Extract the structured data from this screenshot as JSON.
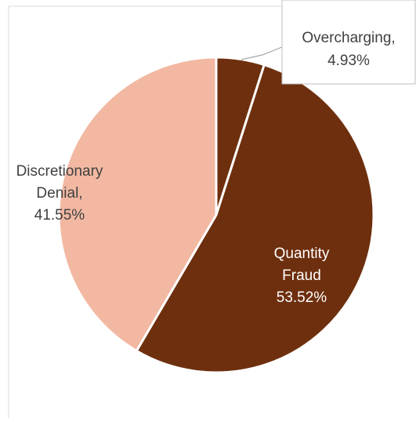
{
  "chart_data": {
    "type": "pie",
    "title": "",
    "slices": [
      {
        "label_lines": [
          "Overcharging,",
          "4.93%"
        ],
        "category": "Overcharging",
        "value": 4.93,
        "color": "#6e2f0e"
      },
      {
        "label_lines": [
          "Quantity",
          "Fraud",
          "53.52%"
        ],
        "category": "Quantity Fraud",
        "value": 53.52,
        "color": "#6e2f0e"
      },
      {
        "label_lines": [
          "Discretionary",
          "Denial,",
          "41.55%"
        ],
        "category": "Discretionary Denial",
        "value": 41.55,
        "color": "#f2b8a2"
      }
    ],
    "label_colors": {
      "on_dark": "#ffffff",
      "on_light": "#404040"
    },
    "slice_border_color": "#ffffff",
    "frame_color": "#d9d9d9"
  }
}
